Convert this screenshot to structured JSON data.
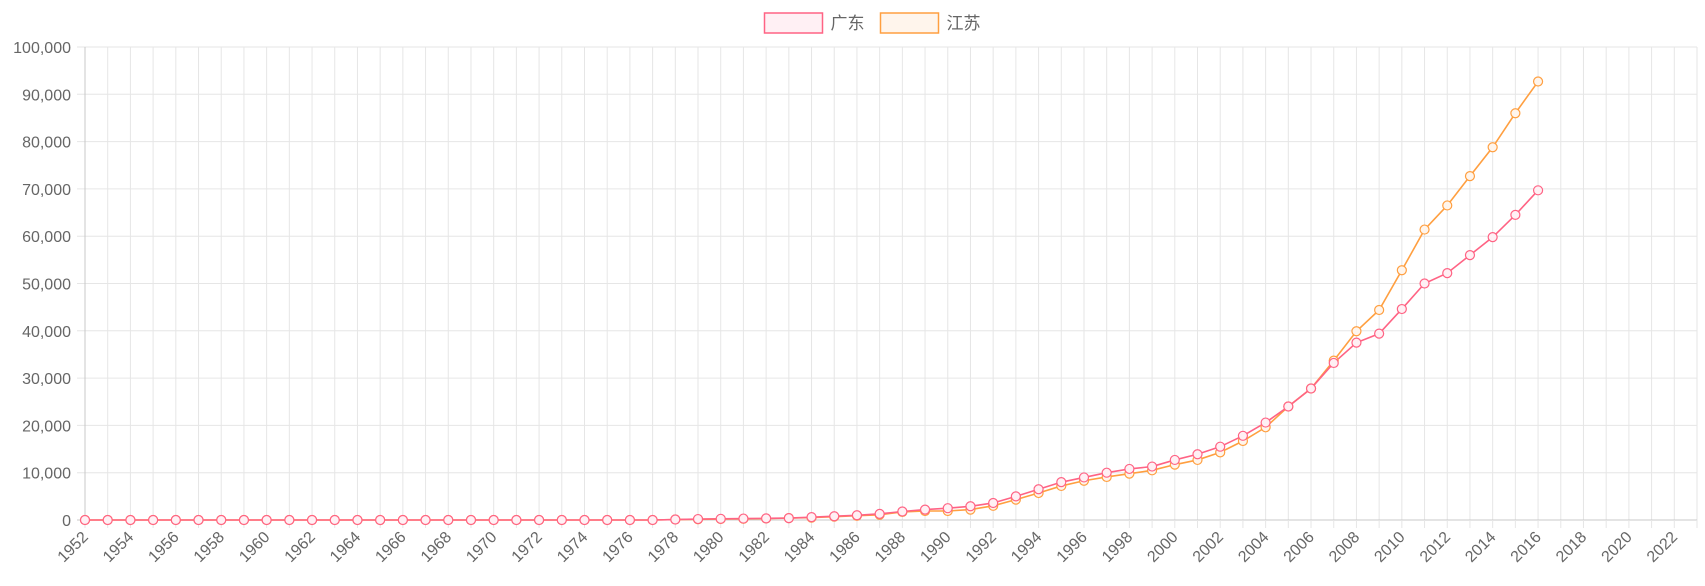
{
  "chart_data": {
    "type": "line",
    "legend": {
      "position": "top"
    },
    "grid": true,
    "xlim": [
      1952,
      2023
    ],
    "ylim": [
      0,
      100000
    ],
    "x_tick_labels": [
      "1952",
      "1954",
      "1956",
      "1958",
      "1960",
      "1962",
      "1964",
      "1966",
      "1968",
      "1970",
      "1972",
      "1974",
      "1976",
      "1978",
      "1980",
      "1982",
      "1984",
      "1986",
      "1988",
      "1990",
      "1992",
      "1994",
      "1996",
      "1998",
      "2000",
      "2002",
      "2004",
      "2006",
      "2008",
      "2010",
      "2012",
      "2014",
      "2016",
      "2018",
      "2020",
      "2022"
    ],
    "y_tick_labels": [
      "0",
      "10,000",
      "20,000",
      "30,000",
      "40,000",
      "50,000",
      "60,000",
      "70,000",
      "80,000",
      "90,000",
      "100,000"
    ],
    "y_ticks": [
      0,
      10000,
      20000,
      30000,
      40000,
      50000,
      60000,
      70000,
      80000,
      90000,
      100000
    ],
    "x": [
      1952,
      1953,
      1954,
      1955,
      1956,
      1957,
      1958,
      1959,
      1960,
      1961,
      1962,
      1963,
      1964,
      1965,
      1966,
      1967,
      1968,
      1969,
      1970,
      1971,
      1972,
      1973,
      1974,
      1975,
      1976,
      1977,
      1978,
      1979,
      1980,
      1981,
      1982,
      1983,
      1984,
      1985,
      1986,
      1987,
      1988,
      1989,
      1990,
      1991,
      1992,
      1993,
      1994,
      1995,
      1996,
      1997,
      1998,
      1999,
      2000,
      2001,
      2002,
      2003,
      2004,
      2005,
      2006,
      2007,
      2008,
      2009,
      2010,
      2011,
      2012,
      2013,
      2014,
      2015,
      2016
    ],
    "series": [
      {
        "name": "广东",
        "color": "#ff6384",
        "fill": "#fff0f4",
        "values": [
          0,
          0,
          0,
          0,
          0,
          0,
          0,
          0,
          0,
          0,
          0,
          0,
          0,
          0,
          0,
          0,
          0,
          0,
          0,
          0,
          0,
          0,
          0,
          0,
          0,
          0,
          100,
          200,
          250,
          300,
          350,
          400,
          600,
          800,
          1000,
          1300,
          1800,
          2200,
          2500,
          2900,
          3600,
          5000,
          6500,
          8000,
          9000,
          10000,
          10800,
          11300,
          12700,
          13900,
          15500,
          17800,
          20600,
          24000,
          27800,
          33200,
          37500,
          39400,
          44600,
          50000,
          52200,
          56000,
          59800,
          64500,
          69700
        ]
      },
      {
        "name": "江苏",
        "color": "#ff9f40",
        "fill": "#fff5ec",
        "values": [
          0,
          0,
          0,
          0,
          0,
          0,
          0,
          0,
          0,
          0,
          0,
          0,
          0,
          0,
          0,
          0,
          0,
          0,
          0,
          0,
          0,
          0,
          0,
          0,
          0,
          0,
          100,
          150,
          200,
          250,
          300,
          400,
          500,
          700,
          900,
          1100,
          1700,
          1900,
          1900,
          2200,
          3000,
          4300,
          5700,
          7200,
          8300,
          9100,
          9800,
          10500,
          11700,
          12700,
          14300,
          16700,
          19600,
          24000,
          27800,
          33700,
          39900,
          44400,
          52800,
          61400,
          66500,
          72700,
          78800,
          86000,
          92700
        ]
      }
    ]
  }
}
